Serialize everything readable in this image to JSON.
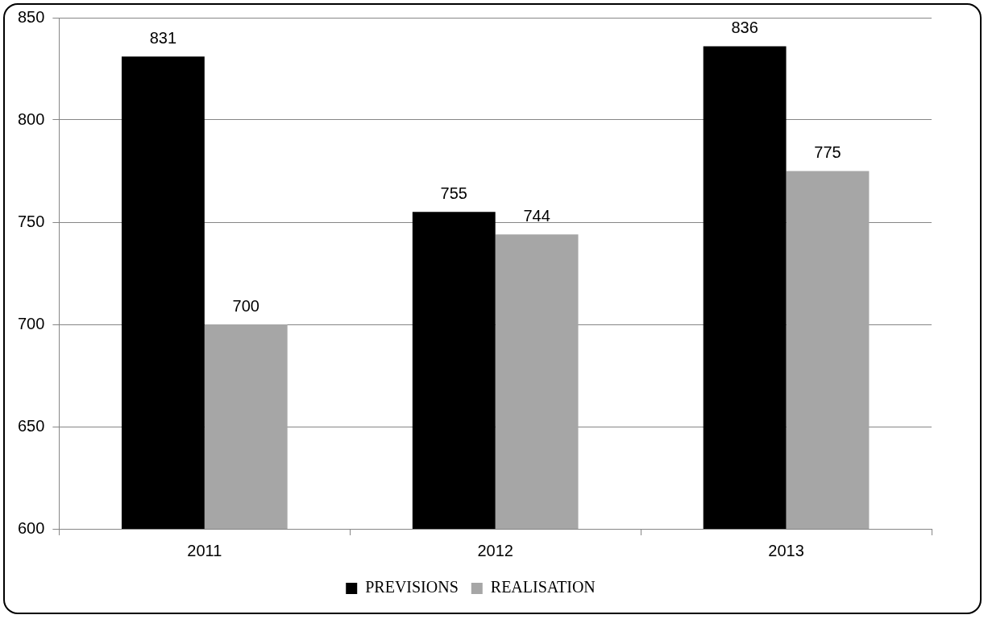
{
  "chart_data": {
    "type": "bar",
    "categories": [
      "2011",
      "2012",
      "2013"
    ],
    "series": [
      {
        "name": "PREVISIONS",
        "color": "#000000",
        "values": [
          831,
          755,
          836
        ]
      },
      {
        "name": "REALISATION",
        "color": "#a6a6a6",
        "values": [
          700,
          744,
          775
        ]
      }
    ],
    "ylim": [
      600,
      850
    ],
    "yticks": [
      600,
      650,
      700,
      750,
      800,
      850
    ],
    "grid": "y",
    "legend": "bottom",
    "data_labels": true
  }
}
